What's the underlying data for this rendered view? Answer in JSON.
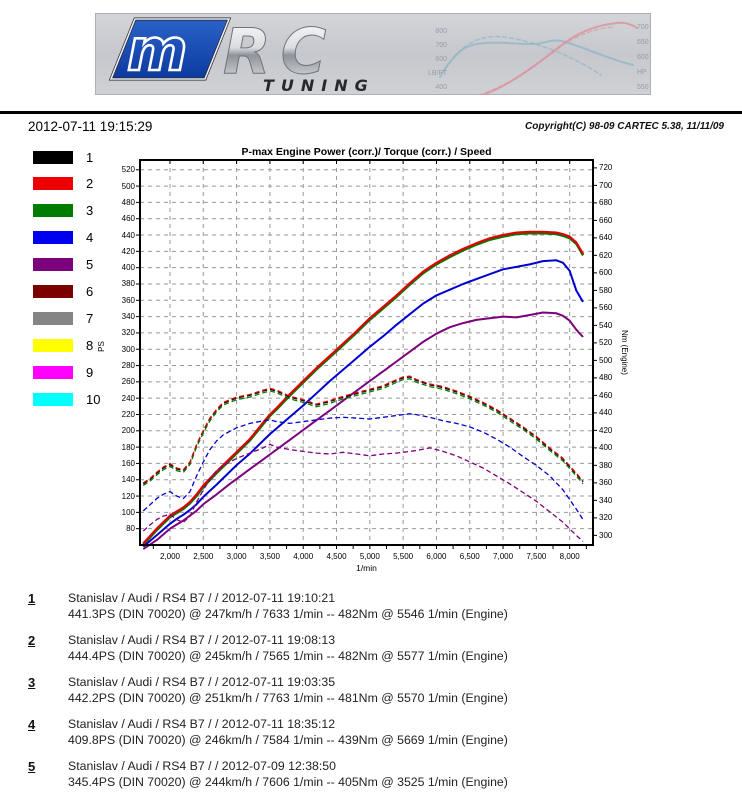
{
  "header": {
    "logo_m": "m",
    "logo_rc": "RC",
    "logo_tuning": "TUNING",
    "mini_chart": {
      "left_labels": [
        "800",
        "700",
        "600",
        "LB/FT",
        "400"
      ],
      "right_labels": [
        "700",
        "650",
        "600",
        "HP",
        "550"
      ]
    }
  },
  "meta": {
    "datetime": "2012-07-11 19:15:29",
    "copyright": "Copyright(C) 98-09 CARTEC 5.38, 11/11/09"
  },
  "legend": [
    {
      "num": "1",
      "color": "#000000"
    },
    {
      "num": "2",
      "color": "#ee0000"
    },
    {
      "num": "3",
      "color": "#007c00"
    },
    {
      "num": "4",
      "color": "#0000ee"
    },
    {
      "num": "5",
      "color": "#7d007d"
    },
    {
      "num": "6",
      "color": "#7d0000"
    },
    {
      "num": "7",
      "color": "#858585"
    },
    {
      "num": "8",
      "color": "#ffff00"
    },
    {
      "num": "9",
      "color": "#ff00ff"
    },
    {
      "num": "10",
      "color": "#00ffff"
    }
  ],
  "chart_data": {
    "type": "line",
    "title": "P-max Engine Power (corr.)/ Torque (corr.) / Speed",
    "xlabel": "1/min",
    "ylabel_left": "PS",
    "ylabel_right": "Nm (Engine)",
    "x_range": [
      1550,
      8350
    ],
    "y_left_range": [
      60,
      532
    ],
    "y_right_range": [
      289,
      729
    ],
    "grid": true,
    "x_ticks": [
      {
        "v": 2000,
        "label": "2,000"
      },
      {
        "v": 2500,
        "label": "2,500"
      },
      {
        "v": 3000,
        "label": "3,000"
      },
      {
        "v": 3500,
        "label": "3,500"
      },
      {
        "v": 4000,
        "label": "4,000"
      },
      {
        "v": 4500,
        "label": "4,500"
      },
      {
        "v": 5000,
        "label": "5,000"
      },
      {
        "v": 5500,
        "label": "5,500"
      },
      {
        "v": 6000,
        "label": "6,000"
      },
      {
        "v": 6500,
        "label": "6,500"
      },
      {
        "v": 7000,
        "label": "7,000"
      },
      {
        "v": 7500,
        "label": "7,500"
      },
      {
        "v": 8000,
        "label": "8,000"
      }
    ],
    "x_minor_step": 250,
    "y_left_ticks": [
      520,
      500,
      480,
      460,
      440,
      420,
      400,
      380,
      360,
      340,
      320,
      300,
      280,
      260,
      240,
      220,
      200,
      180,
      160,
      140,
      120,
      100,
      80
    ],
    "y_right_ticks": [
      720,
      700,
      680,
      660,
      640,
      620,
      600,
      580,
      560,
      540,
      520,
      500,
      480,
      460,
      440,
      420,
      400,
      380,
      360,
      340,
      320,
      300
    ],
    "series": [
      {
        "name": "run-1-power-black",
        "color": "#000000",
        "style": "solid",
        "width": 2.2,
        "axis": "left",
        "x": [
          1600,
          1800,
          2000,
          2100,
          2200,
          2300,
          2400,
          2500,
          2700,
          2900,
          3000,
          3200,
          3400,
          3500,
          3600,
          3800,
          4000,
          4200,
          4400,
          4600,
          4800,
          5000,
          5200,
          5400,
          5600,
          5800,
          6000,
          6200,
          6400,
          6600,
          6800,
          7000,
          7200,
          7400,
          7600,
          7800,
          7900,
          8000,
          8100,
          8200
        ],
        "y": [
          61,
          79,
          95,
          100,
          105,
          112,
          121,
          132,
          149,
          165,
          173,
          189,
          209,
          219,
          227,
          244,
          260,
          276,
          291,
          306,
          321,
          337,
          351,
          365,
          380,
          394,
          405,
          414,
          422,
          429,
          435,
          439,
          442,
          443,
          443,
          442,
          440,
          437,
          430,
          416
        ]
      },
      {
        "name": "run-3-power-green",
        "color": "#007c00",
        "style": "solid",
        "width": 2.2,
        "axis": "left",
        "x": [
          1600,
          1800,
          2000,
          2100,
          2200,
          2300,
          2400,
          2500,
          2700,
          2900,
          3000,
          3200,
          3400,
          3500,
          3600,
          3800,
          4000,
          4200,
          4400,
          4600,
          4800,
          5000,
          5200,
          5400,
          5600,
          5800,
          6000,
          6200,
          6400,
          6600,
          6800,
          7000,
          7200,
          7400,
          7600,
          7800,
          7900,
          8000,
          8100,
          8200
        ],
        "y": [
          60,
          78,
          94,
          99,
          104,
          111,
          120,
          131,
          148,
          164,
          172,
          188,
          208,
          218,
          226,
          243,
          259,
          275,
          290,
          305,
          320,
          336,
          350,
          364,
          379,
          393,
          404,
          413,
          421,
          428,
          434,
          438,
          441,
          442,
          442,
          441,
          439,
          436,
          429,
          415
        ]
      },
      {
        "name": "run-2-power-red",
        "color": "#e00000",
        "style": "solid",
        "width": 2.2,
        "axis": "left",
        "x": [
          1600,
          1800,
          2000,
          2100,
          2200,
          2300,
          2400,
          2500,
          2700,
          2900,
          3000,
          3200,
          3400,
          3500,
          3600,
          3800,
          4000,
          4200,
          4400,
          4600,
          4800,
          5000,
          5200,
          5400,
          5600,
          5800,
          6000,
          6200,
          6400,
          6600,
          6800,
          7000,
          7200,
          7400,
          7600,
          7800,
          7900,
          8000,
          8100,
          8200
        ],
        "y": [
          62,
          80,
          96,
          101,
          106,
          113,
          122,
          133,
          150,
          166,
          174,
          190,
          210,
          220,
          228,
          245,
          261,
          277,
          292,
          307,
          322,
          338,
          352,
          366,
          381,
          395,
          406,
          415,
          423,
          430,
          436,
          440,
          443,
          444,
          444,
          443,
          441,
          438,
          431,
          417
        ]
      },
      {
        "name": "run-4-power-blue",
        "color": "#0000d0",
        "style": "solid",
        "width": 2,
        "axis": "left",
        "x": [
          1600,
          1800,
          2000,
          2100,
          2200,
          2300,
          2400,
          2500,
          2700,
          2900,
          3000,
          3200,
          3400,
          3500,
          3600,
          3800,
          4000,
          4200,
          4400,
          4600,
          4800,
          5000,
          5200,
          5400,
          5600,
          5800,
          6000,
          6200,
          6400,
          6600,
          6800,
          7000,
          7200,
          7400,
          7600,
          7800,
          7900,
          8000,
          8100,
          8200
        ],
        "y": [
          58,
          72,
          86,
          92,
          97,
          103,
          110,
          119,
          134,
          150,
          158,
          172,
          188,
          196,
          203,
          217,
          231,
          246,
          261,
          275,
          289,
          303,
          316,
          330,
          343,
          356,
          366,
          373,
          380,
          386,
          392,
          398,
          401,
          404,
          408,
          409,
          406,
          396,
          372,
          358
        ]
      },
      {
        "name": "run-5-power-purple",
        "color": "#7d007d",
        "style": "solid",
        "width": 2,
        "axis": "left",
        "x": [
          1600,
          1800,
          2000,
          2100,
          2200,
          2300,
          2400,
          2500,
          2700,
          2900,
          3000,
          3200,
          3400,
          3500,
          3600,
          3800,
          4000,
          4200,
          4400,
          4600,
          4800,
          5000,
          5200,
          5400,
          5600,
          5800,
          6000,
          6200,
          6400,
          6600,
          6800,
          7000,
          7200,
          7400,
          7600,
          7800,
          7900,
          8000,
          8100,
          8200
        ],
        "y": [
          55,
          66,
          80,
          85,
          90,
          96,
          102,
          110,
          122,
          135,
          141,
          153,
          165,
          171,
          177,
          189,
          201,
          213,
          225,
          237,
          249,
          261,
          273,
          285,
          297,
          309,
          319,
          327,
          332,
          336,
          338,
          340,
          339,
          342,
          345,
          344,
          341,
          335,
          324,
          315
        ]
      },
      {
        "name": "run-1-torque-black",
        "color": "#000000",
        "style": "dashed",
        "width": 1.3,
        "axis": "right",
        "x": [
          1600,
          1700,
          1800,
          1900,
          2000,
          2100,
          2200,
          2300,
          2400,
          2500,
          2600,
          2700,
          2800,
          3000,
          3200,
          3400,
          3500,
          3600,
          3800,
          4000,
          4200,
          4400,
          4600,
          4800,
          5000,
          5200,
          5400,
          5500,
          5600,
          5700,
          5900,
          6100,
          6300,
          6500,
          6700,
          6900,
          7100,
          7300,
          7500,
          7700,
          7900,
          8100,
          8200
        ],
        "y": [
          359,
          364,
          371,
          377,
          381,
          376,
          374,
          383,
          403,
          419,
          433,
          443,
          451,
          457,
          460,
          465,
          467,
          465,
          458,
          454,
          449,
          453,
          458,
          462,
          466,
          470,
          477,
          480,
          481,
          477,
          472,
          469,
          464,
          458,
          451,
          443,
          433,
          423,
          412,
          399,
          387,
          370,
          361
        ]
      },
      {
        "name": "run-3-torque-green",
        "color": "#007c00",
        "style": "dashed",
        "width": 1.3,
        "axis": "right",
        "x": [
          1600,
          1700,
          1800,
          1900,
          2000,
          2100,
          2200,
          2300,
          2400,
          2500,
          2600,
          2700,
          2800,
          3000,
          3200,
          3400,
          3500,
          3600,
          3800,
          4000,
          4200,
          4400,
          4600,
          4800,
          5000,
          5200,
          5400,
          5500,
          5600,
          5700,
          5900,
          6100,
          6300,
          6500,
          6700,
          6900,
          7100,
          7300,
          7500,
          7700,
          7900,
          8100,
          8200
        ],
        "y": [
          357,
          362,
          369,
          375,
          379,
          374,
          372,
          381,
          401,
          417,
          431,
          441,
          449,
          455,
          458,
          463,
          465,
          463,
          456,
          452,
          447,
          451,
          456,
          460,
          464,
          468,
          475,
          478,
          479,
          475,
          470,
          467,
          462,
          456,
          449,
          441,
          431,
          421,
          410,
          397,
          385,
          368,
          359
        ]
      },
      {
        "name": "run-2-torque-red",
        "color": "#e00000",
        "style": "dashed",
        "width": 1.3,
        "axis": "right",
        "x": [
          1600,
          1700,
          1800,
          1900,
          2000,
          2100,
          2200,
          2300,
          2400,
          2500,
          2600,
          2700,
          2800,
          3000,
          3200,
          3400,
          3500,
          3600,
          3800,
          4000,
          4200,
          4400,
          4600,
          4800,
          5000,
          5200,
          5400,
          5500,
          5600,
          5700,
          5900,
          6100,
          6300,
          6500,
          6700,
          6900,
          7100,
          7300,
          7500,
          7700,
          7900,
          8100,
          8200
        ],
        "y": [
          360,
          365,
          372,
          378,
          382,
          377,
          375,
          384,
          404,
          420,
          434,
          444,
          452,
          458,
          461,
          466,
          468,
          466,
          459,
          455,
          450,
          454,
          459,
          463,
          467,
          471,
          478,
          481,
          482,
          478,
          473,
          470,
          465,
          459,
          452,
          444,
          434,
          424,
          413,
          400,
          388,
          371,
          362
        ]
      },
      {
        "name": "run-4-torque-blue",
        "color": "#0000d0",
        "style": "dashed",
        "width": 1.3,
        "axis": "right",
        "x": [
          1600,
          1700,
          1800,
          1900,
          2000,
          2100,
          2200,
          2300,
          2400,
          2500,
          2600,
          2700,
          2800,
          3000,
          3200,
          3400,
          3500,
          3600,
          3800,
          4000,
          4200,
          4400,
          4600,
          4800,
          5000,
          5200,
          5400,
          5500,
          5600,
          5700,
          5900,
          6100,
          6300,
          6500,
          6700,
          6900,
          7100,
          7300,
          7500,
          7700,
          7900,
          8100,
          8200
        ],
        "y": [
          328,
          335,
          342,
          347,
          350,
          345,
          342,
          350,
          368,
          384,
          398,
          408,
          415,
          423,
          428,
          431,
          432,
          430,
          428,
          430,
          432,
          434,
          435,
          434,
          433,
          435,
          437,
          438,
          439,
          438,
          435,
          431,
          428,
          424,
          418,
          410,
          401,
          390,
          380,
          368,
          352,
          330,
          318
        ]
      },
      {
        "name": "run-5-torque-purple",
        "color": "#7d007d",
        "style": "dashed",
        "width": 1.3,
        "axis": "right",
        "x": [
          1600,
          1700,
          1800,
          1900,
          2000,
          2100,
          2200,
          2300,
          2400,
          2500,
          2600,
          2700,
          2800,
          3000,
          3200,
          3400,
          3500,
          3600,
          3800,
          4000,
          4200,
          4400,
          4600,
          4800,
          5000,
          5200,
          5400,
          5500,
          5600,
          5700,
          5900,
          6100,
          6300,
          6500,
          6700,
          6900,
          7100,
          7300,
          7500,
          7700,
          7900,
          8100,
          8200
        ],
        "y": [
          305,
          312,
          318,
          322,
          324,
          318,
          315,
          322,
          338,
          352,
          364,
          374,
          380,
          388,
          394,
          400,
          404,
          401,
          398,
          396,
          394,
          393,
          395,
          393,
          391,
          393,
          394,
          395,
          396,
          397,
          400,
          396,
          391,
          384,
          377,
          368,
          359,
          349,
          339,
          327,
          315,
          300,
          293
        ]
      }
    ]
  },
  "runs": [
    {
      "num": "1",
      "line1": "Stanislav / Audi / RS4 B7 /  / 2012-07-11 19:10:21",
      "line2": "441.3PS (DIN 70020) @ 247km/h / 7633 1/min -- 482Nm @ 5546 1/min (Engine)"
    },
    {
      "num": "2",
      "line1": "Stanislav / Audi / RS4 B7 /  / 2012-07-11 19:08:13",
      "line2": "444.4PS (DIN 70020) @ 245km/h / 7565 1/min -- 482Nm @ 5577 1/min (Engine)"
    },
    {
      "num": "3",
      "line1": "Stanislav / Audi / RS4 B7 /  / 2012-07-11 19:03:35",
      "line2": "442.2PS (DIN 70020) @ 251km/h / 7763 1/min -- 481Nm @ 5570 1/min (Engine)"
    },
    {
      "num": "4",
      "line1": "Stanislav / Audi / RS4 B7 /  / 2012-07-11 18:35:12",
      "line2": "409.8PS (DIN 70020) @ 246km/h / 7584 1/min -- 439Nm @ 5669 1/min (Engine)"
    },
    {
      "num": "5",
      "line1": "Stanislav / Audi / RS4 B7 /  / 2012-07-09 12:38:50",
      "line2": "345.4PS (DIN 70020) @ 244km/h / 7606 1/min -- 405Nm @ 3525 1/min (Engine)"
    }
  ]
}
